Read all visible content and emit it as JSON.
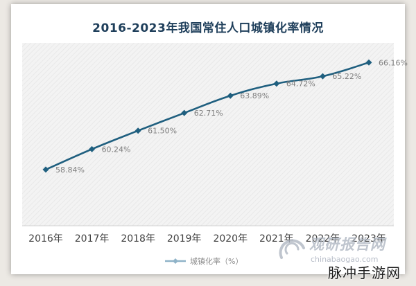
{
  "chart_data": {
    "type": "line",
    "title": "2016-2023年我国常住人口城镇化率情况",
    "categories": [
      "2016年",
      "2017年",
      "2018年",
      "2019年",
      "2020年",
      "2021年",
      "2022年",
      "2023年"
    ],
    "series": [
      {
        "name": "城镇化率（%）",
        "values": [
          58.84,
          60.24,
          61.5,
          62.71,
          63.89,
          64.72,
          65.22,
          66.16
        ],
        "labels": [
          "58.84%",
          "60.24%",
          "61.50%",
          "62.71%",
          "63.89%",
          "64.72%",
          "65.22%",
          "66.16%"
        ],
        "color": "#1f5f7f"
      }
    ],
    "ylim": [
      55,
      67.5
    ],
    "grid": false,
    "legend_position": "bottom"
  },
  "watermark": {
    "brand": "观研报告网",
    "domain": "chinabaogao.com",
    "site": "脉冲手游网"
  },
  "colors": {
    "line": "#1f5f7f",
    "title": "#1f3f5b",
    "plot_bg": "#f4f4f4",
    "label": "#7f7f7f"
  }
}
